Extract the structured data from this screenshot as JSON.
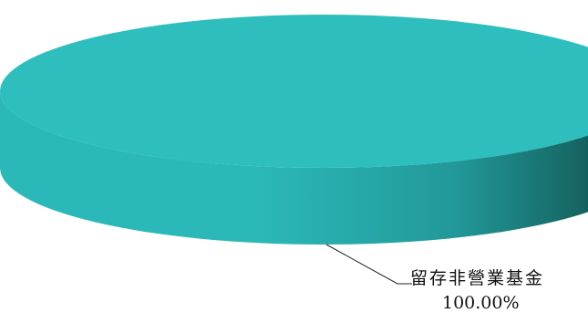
{
  "chart_data": {
    "type": "pie",
    "title": "",
    "slices": [
      {
        "label": "留存非營業基金",
        "value": 100.0,
        "percent_label": "100.00%"
      }
    ],
    "colors": {
      "top": "#2EBEBE",
      "side_light": "#2BB8B8",
      "side_mid": "#229999",
      "side_dark": "#0E4A46",
      "leader_line": "#222222"
    },
    "style": "3d",
    "legend": "none"
  }
}
